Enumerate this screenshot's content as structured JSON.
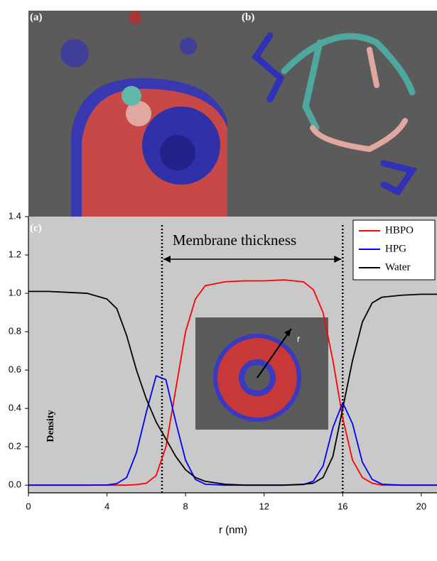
{
  "chart_data": {
    "type": "line",
    "panel_labels": [
      "(a)",
      "(b)",
      "(c)"
    ],
    "annotation": "Membrane thickness",
    "inset_label": "r",
    "vlines": [
      6.8,
      16
    ],
    "x_label": "r (nm)",
    "y_label": "Density",
    "x": [
      0,
      1,
      2,
      3,
      4,
      4.5,
      5,
      5.5,
      6,
      6.5,
      7,
      7.5,
      8,
      8.5,
      9,
      10,
      11,
      12,
      13,
      14,
      14.5,
      15,
      15.5,
      16,
      16.5,
      17,
      17.5,
      18,
      19,
      20,
      20.8
    ],
    "series": [
      {
        "name": "HBPO",
        "color": "#ff0000",
        "values": [
          0,
          0,
          0,
          0,
          0,
          0,
          0,
          0.003,
          0.01,
          0.05,
          0.2,
          0.5,
          0.8,
          0.97,
          1.04,
          1.06,
          1.065,
          1.065,
          1.07,
          1.06,
          1.02,
          0.9,
          0.65,
          0.35,
          0.13,
          0.04,
          0.01,
          0,
          0,
          0,
          0
        ]
      },
      {
        "name": "HPG",
        "color": "#0000ff",
        "values": [
          0,
          0,
          0,
          0,
          0.001,
          0.008,
          0.04,
          0.17,
          0.38,
          0.57,
          0.55,
          0.33,
          0.13,
          0.03,
          0.005,
          0,
          0,
          0,
          0,
          0.003,
          0.02,
          0.1,
          0.3,
          0.43,
          0.32,
          0.12,
          0.03,
          0.005,
          0,
          0,
          0
        ]
      },
      {
        "name": "Water",
        "color": "#000000",
        "values": [
          1.01,
          1.01,
          1.005,
          1.0,
          0.97,
          0.92,
          0.78,
          0.6,
          0.45,
          0.33,
          0.24,
          0.15,
          0.08,
          0.04,
          0.02,
          0.005,
          0,
          0,
          0,
          0.005,
          0.01,
          0.04,
          0.15,
          0.4,
          0.65,
          0.85,
          0.95,
          0.98,
          0.99,
          0.995,
          0.995
        ]
      }
    ],
    "xlim": [
      0,
      20.8
    ],
    "ylim": [
      -0.04,
      1.4
    ],
    "xticks": [
      0,
      4,
      8,
      12,
      16,
      20
    ],
    "yticks": [
      {
        "value": 0,
        "label": "0.0"
      },
      0.2,
      0.4,
      0.6,
      0.8,
      {
        "value": 1,
        "label": "1.0"
      },
      1.2,
      1.4
    ],
    "legend": "top-right"
  }
}
